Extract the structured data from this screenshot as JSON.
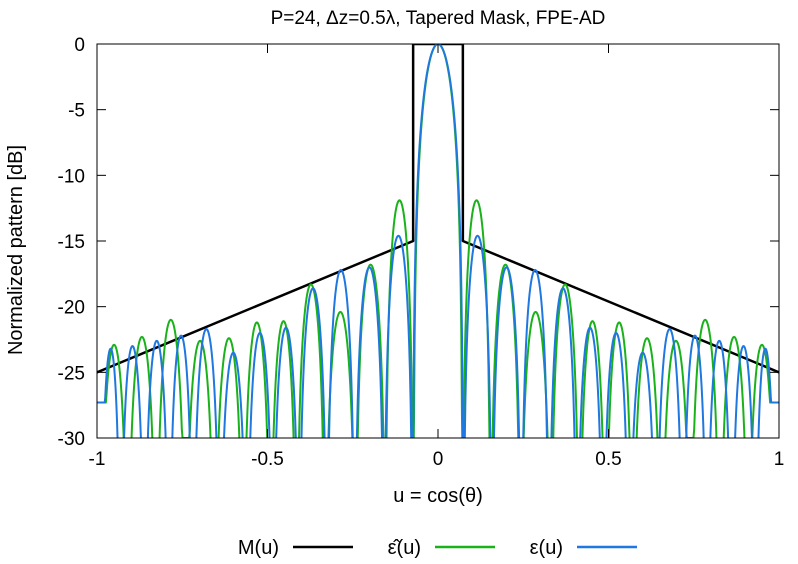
{
  "chart_data": {
    "type": "line",
    "title": "P=24, Δz=0.5λ, Tapered Mask, FPE-AD",
    "xlabel": "u = cos(θ)",
    "ylabel": "Normalized pattern [dB]",
    "xlim": [
      -1,
      1
    ],
    "ylim": [
      -30,
      0
    ],
    "xticks": [
      -1,
      -0.5,
      0,
      0.5,
      1
    ],
    "xtick_labels": [
      "-1",
      "-0.5",
      "0",
      "0.5",
      "1"
    ],
    "yticks": [
      0,
      -5,
      -10,
      -15,
      -20,
      -25,
      -30
    ],
    "ytick_labels": [
      "0",
      "-5",
      "-10",
      "-15",
      "-20",
      "-25",
      "-30"
    ],
    "grid": false,
    "legend_position": "bottom",
    "series": [
      {
        "name": "M(u)",
        "color": "#000000",
        "kind": "mask",
        "points": [
          [
            -1,
            -25
          ],
          [
            -0.0729,
            -15
          ],
          [
            -0.0729,
            0
          ],
          [
            0.0729,
            0
          ],
          [
            0.0729,
            -15
          ],
          [
            1,
            -25
          ]
        ]
      },
      {
        "name": "ε̂(u)",
        "color": "#1ab21a",
        "kind": "pattern",
        "mainlobe_halfwidth": 0.072,
        "lobes": [
          [
            0.111,
            -11.9
          ],
          [
            0.197,
            -16.8
          ],
          [
            0.286,
            -20.4
          ],
          [
            0.376,
            -18.3
          ],
          [
            0.453,
            -21.1
          ],
          [
            0.53,
            -21.2
          ],
          [
            0.612,
            -22.4
          ],
          [
            0.698,
            -22.6
          ],
          [
            0.783,
            -21.0
          ],
          [
            0.87,
            -22.3
          ],
          [
            0.95,
            -22.9
          ]
        ],
        "null_depth": [
          -45,
          -45,
          -33,
          -45,
          -34,
          -45,
          -31,
          -45,
          -30,
          -45,
          -45,
          -27.3
        ]
      },
      {
        "name": "ε(u)",
        "color": "#1f77e0",
        "kind": "pattern",
        "mainlobe_halfwidth": 0.074,
        "lobes": [
          [
            0.111,
            -14.6
          ],
          [
            0.205,
            -17.0
          ],
          [
            0.283,
            -17.2
          ],
          [
            0.368,
            -18.6
          ],
          [
            0.447,
            -21.6
          ],
          [
            0.521,
            -22.0
          ],
          [
            0.6,
            -23.5
          ],
          [
            0.68,
            -21.7
          ],
          [
            0.757,
            -22.2
          ],
          [
            0.82,
            -22.6
          ],
          [
            0.902,
            -23.0
          ],
          [
            0.96,
            -23.2
          ]
        ],
        "null_depth": [
          -45,
          -45,
          -45,
          -45,
          -45,
          -45,
          -45,
          -45,
          -45,
          -45,
          -45,
          -45,
          -27.3
        ]
      }
    ]
  },
  "legend": {
    "mask_label": "M(u)",
    "hat_label": "ε̂(u)",
    "eps_label": "ε(u)"
  }
}
